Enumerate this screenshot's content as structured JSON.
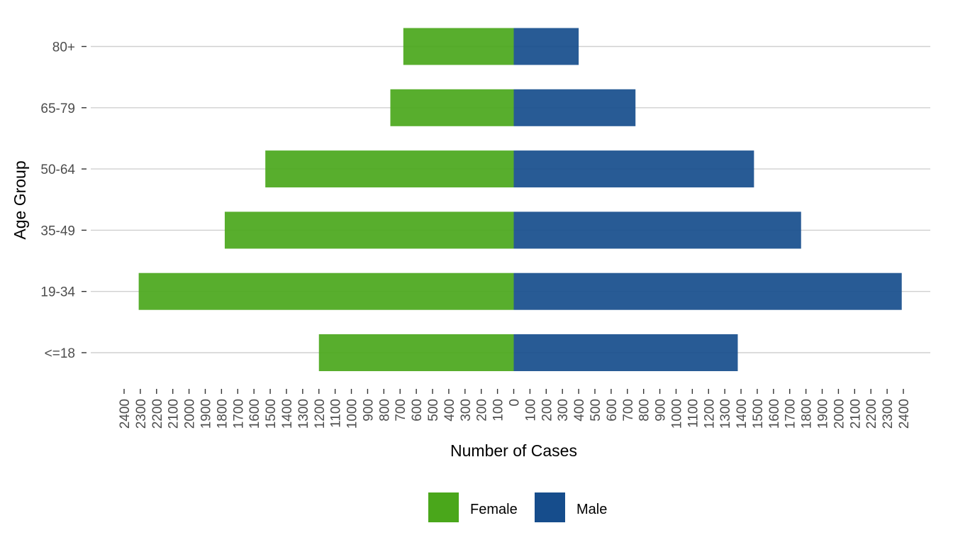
{
  "chart_data": {
    "type": "bar",
    "orientation": "horizontal",
    "layout": "population-pyramid",
    "xlabel": "Number of Cases",
    "ylabel": "Age Group",
    "categories": [
      "<=18",
      "19-34",
      "35-49",
      "50-64",
      "65-79",
      "80+"
    ],
    "series": [
      {
        "name": "Female",
        "color": "#4aa71b",
        "values": [
          1200,
          2310,
          1780,
          1530,
          760,
          680
        ]
      },
      {
        "name": "Male",
        "color": "#164d8c",
        "values": [
          1380,
          2390,
          1770,
          1480,
          750,
          400
        ]
      }
    ],
    "xlim": [
      -2400,
      2400
    ],
    "xticks": [
      -2400,
      -2300,
      -2200,
      -2100,
      -2000,
      -1900,
      -1800,
      -1700,
      -1600,
      -1500,
      -1400,
      -1300,
      -1200,
      -1100,
      -1000,
      -900,
      -800,
      -700,
      -600,
      -500,
      -400,
      -300,
      -200,
      -100,
      0,
      100,
      200,
      300,
      400,
      500,
      600,
      700,
      800,
      900,
      1000,
      1100,
      1200,
      1300,
      1400,
      1500,
      1600,
      1700,
      1800,
      1900,
      2000,
      2100,
      2200,
      2300,
      2400
    ],
    "xtick_labels": [
      "2400",
      "2300",
      "2200",
      "2100",
      "2000",
      "1900",
      "1800",
      "1700",
      "1600",
      "1500",
      "1400",
      "1300",
      "1200",
      "1100",
      "1000",
      "900",
      "800",
      "700",
      "600",
      "500",
      "400",
      "300",
      "200",
      "100",
      "0",
      "100",
      "200",
      "300",
      "400",
      "500",
      "600",
      "700",
      "800",
      "900",
      "1000",
      "1100",
      "1200",
      "1300",
      "1400",
      "1500",
      "1600",
      "1700",
      "1800",
      "1900",
      "2000",
      "2100",
      "2200",
      "2300",
      "2400"
    ],
    "grid": "horizontal-major",
    "legend": {
      "position": "bottom",
      "items": [
        "Female",
        "Male"
      ]
    }
  }
}
